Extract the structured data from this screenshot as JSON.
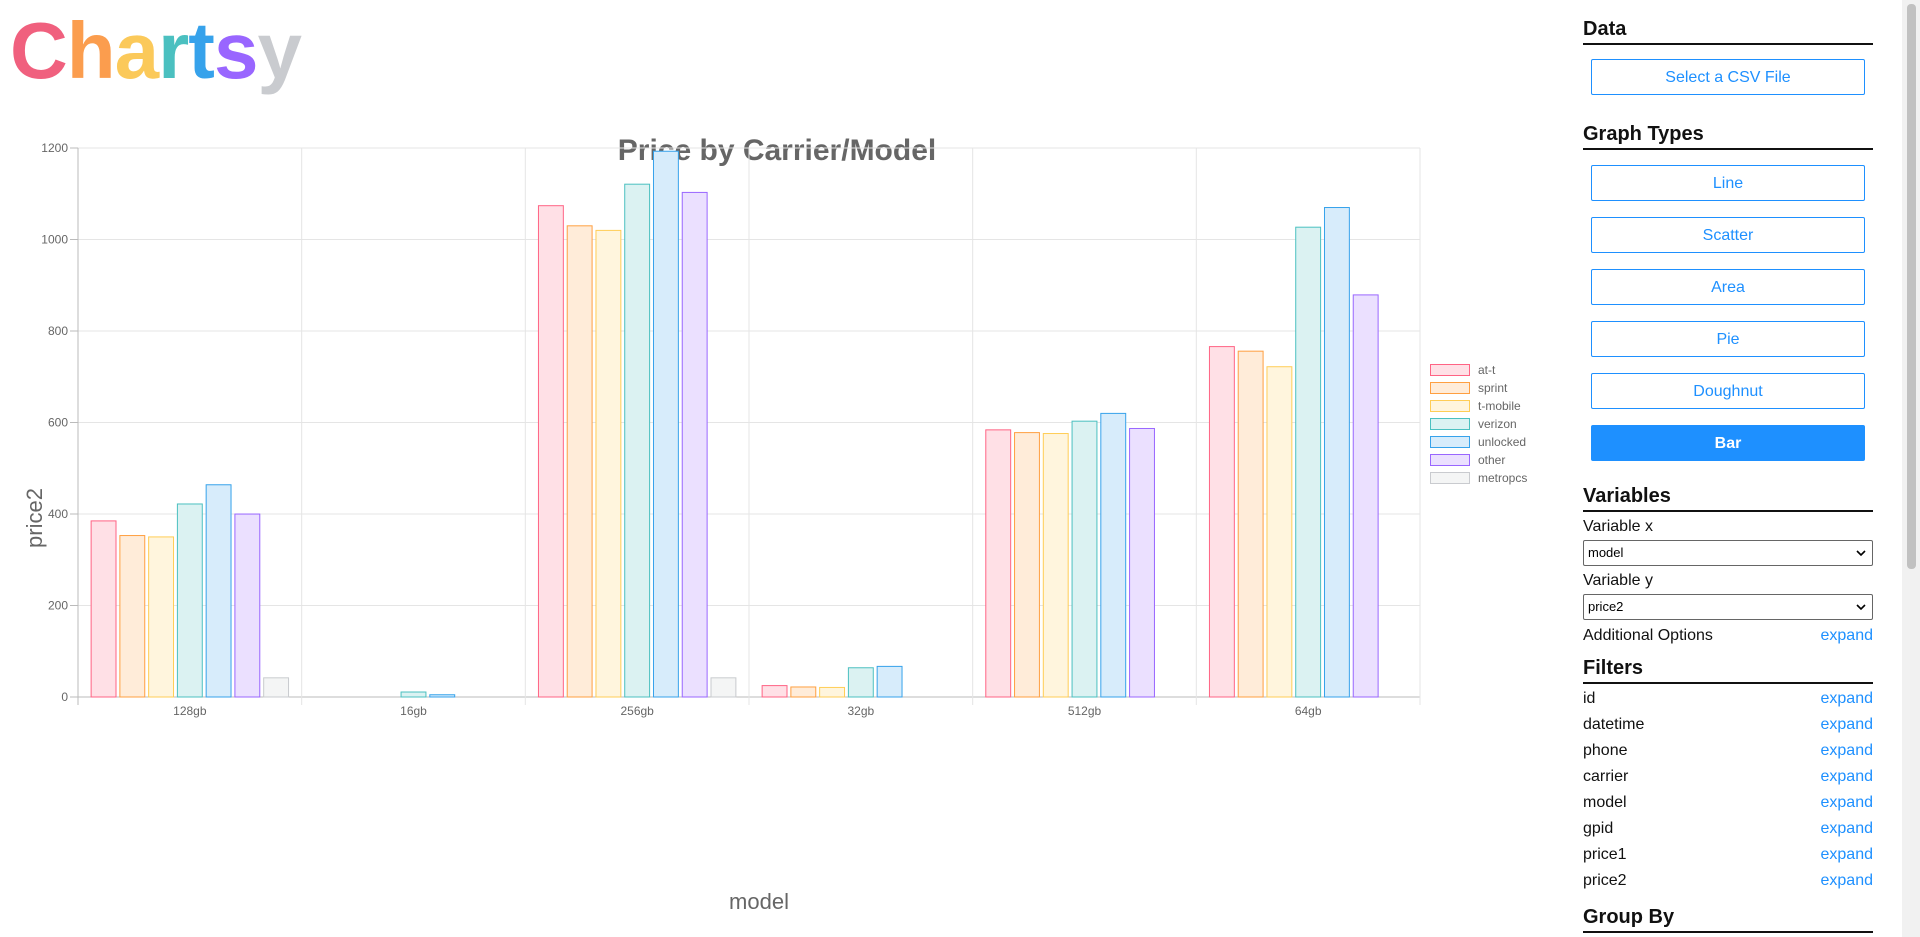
{
  "logo": {
    "letters": [
      {
        "char": "C",
        "color": "#f0607e"
      },
      {
        "char": "h",
        "color": "#fb9d4e"
      },
      {
        "char": "a",
        "color": "#fbc95a"
      },
      {
        "char": "r",
        "color": "#4bc0c0"
      },
      {
        "char": "t",
        "color": "#36a2eb"
      },
      {
        "char": "s",
        "color": "#9966ff"
      },
      {
        "char": "y",
        "color": "#c9cbcf"
      }
    ]
  },
  "chart_data": {
    "type": "bar",
    "title": "Price by Carrier/Model",
    "xlabel": "model",
    "ylabel": "price2",
    "ylim": [
      0,
      1200
    ],
    "yticks": [
      "0",
      "200",
      "400",
      "600",
      "800",
      "1000",
      "1200"
    ],
    "grid": true,
    "legend_position": "right",
    "categories": [
      "128gb",
      "16gb",
      "256gb",
      "32gb",
      "512gb",
      "64gb"
    ],
    "series": [
      {
        "name": "at-t",
        "border": "#ff6384",
        "fill": "#ffe0e6",
        "values": [
          386,
          null,
          1075,
          26,
          585,
          767
        ]
      },
      {
        "name": "sprint",
        "border": "#ff9f40",
        "fill": "#ffecd9",
        "values": [
          354,
          null,
          1031,
          23,
          579,
          757
        ]
      },
      {
        "name": "t-mobile",
        "border": "#ffcd56",
        "fill": "#fff5dd",
        "values": [
          351,
          null,
          1021,
          22,
          577,
          723
        ]
      },
      {
        "name": "verizon",
        "border": "#4bc0c0",
        "fill": "#dbf2f2",
        "values": [
          423,
          12,
          1122,
          65,
          604,
          1028
        ]
      },
      {
        "name": "unlocked",
        "border": "#36a2eb",
        "fill": "#d7ecfb",
        "values": [
          465,
          6,
          1194,
          68,
          621,
          1071
        ]
      },
      {
        "name": "other",
        "border": "#9966ff",
        "fill": "#ebe0ff",
        "values": [
          401,
          null,
          1104,
          null,
          588,
          880
        ]
      },
      {
        "name": "metropcs",
        "border": "#c9cbcf",
        "fill": "#f4f5f5",
        "values": [
          43,
          null,
          43,
          null,
          null,
          null
        ]
      }
    ]
  },
  "sidebar": {
    "data_section": {
      "title": "Data",
      "select_csv_label": "Select a CSV File"
    },
    "graph_types": {
      "title": "Graph Types",
      "buttons": [
        {
          "label": "Line",
          "active": false
        },
        {
          "label": "Scatter",
          "active": false
        },
        {
          "label": "Area",
          "active": false
        },
        {
          "label": "Pie",
          "active": false
        },
        {
          "label": "Doughnut",
          "active": false
        },
        {
          "label": "Bar",
          "active": true
        }
      ]
    },
    "variables": {
      "title": "Variables",
      "x_label": "Variable x",
      "x_value": "model",
      "y_label": "Variable y",
      "y_value": "price2",
      "additional_label": "Additional Options",
      "additional_link": "expand"
    },
    "filters": {
      "title": "Filters",
      "items": [
        {
          "label": "id",
          "link": "expand"
        },
        {
          "label": "datetime",
          "link": "expand"
        },
        {
          "label": "phone",
          "link": "expand"
        },
        {
          "label": "carrier",
          "link": "expand"
        },
        {
          "label": "model",
          "link": "expand"
        },
        {
          "label": "gpid",
          "link": "expand"
        },
        {
          "label": "price1",
          "link": "expand"
        },
        {
          "label": "price2",
          "link": "expand"
        }
      ]
    },
    "group_by": {
      "title": "Group By"
    }
  }
}
